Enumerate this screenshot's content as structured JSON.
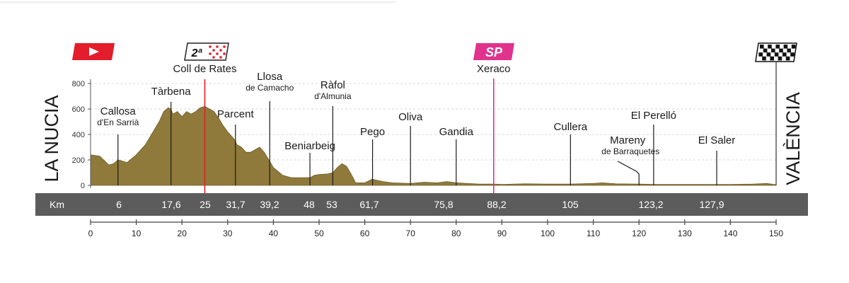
{
  "chart_data": {
    "type": "area",
    "title": "",
    "start": "LA NUCIA",
    "finish": "VALÈNCIA",
    "km_label": "Km",
    "xlim": [
      0,
      150
    ],
    "ylim": [
      0,
      800
    ],
    "x_ticks": [
      0,
      10,
      20,
      30,
      40,
      50,
      60,
      70,
      80,
      90,
      100,
      110,
      120,
      130,
      140,
      150
    ],
    "y_ticks": [
      0,
      200,
      400,
      600,
      800
    ],
    "colors": {
      "fill": "#8f7a3b",
      "climb": "#e31d2b",
      "sprint": "#e0338d",
      "band": "#5c5c5c"
    },
    "badges": [
      {
        "kind": "start",
        "icon": "play-icon",
        "km": 0
      },
      {
        "kind": "climb",
        "label": "2ª",
        "km": 25
      },
      {
        "kind": "sprint",
        "label": "SP",
        "km": 88.2
      },
      {
        "kind": "finish",
        "icon": "checkered-flag-icon",
        "km": 150
      }
    ],
    "profile": [
      [
        0,
        240
      ],
      [
        2,
        230
      ],
      [
        4,
        160
      ],
      [
        5,
        170
      ],
      [
        6,
        200
      ],
      [
        7,
        190
      ],
      [
        8,
        180
      ],
      [
        10,
        240
      ],
      [
        12,
        320
      ],
      [
        14,
        440
      ],
      [
        15,
        500
      ],
      [
        16,
        580
      ],
      [
        17,
        610
      ],
      [
        17.6,
        600
      ],
      [
        18,
        560
      ],
      [
        19,
        580
      ],
      [
        20,
        540
      ],
      [
        21,
        580
      ],
      [
        22,
        560
      ],
      [
        23,
        580
      ],
      [
        24,
        610
      ],
      [
        25,
        620
      ],
      [
        26,
        600
      ],
      [
        27,
        580
      ],
      [
        28,
        530
      ],
      [
        29,
        470
      ],
      [
        30,
        420
      ],
      [
        31,
        380
      ],
      [
        31.7,
        350
      ],
      [
        32,
        320
      ],
      [
        33,
        300
      ],
      [
        34,
        260
      ],
      [
        35,
        260
      ],
      [
        36,
        280
      ],
      [
        37,
        300
      ],
      [
        38,
        260
      ],
      [
        39,
        200
      ],
      [
        39.2,
        190
      ],
      [
        40,
        140
      ],
      [
        41,
        110
      ],
      [
        42,
        80
      ],
      [
        44,
        60
      ],
      [
        46,
        60
      ],
      [
        48,
        60
      ],
      [
        49,
        80
      ],
      [
        50,
        85
      ],
      [
        52,
        90
      ],
      [
        53,
        100
      ],
      [
        54,
        140
      ],
      [
        55,
        170
      ],
      [
        56,
        150
      ],
      [
        57,
        90
      ],
      [
        58,
        20
      ],
      [
        60,
        20
      ],
      [
        61.7,
        50
      ],
      [
        62,
        45
      ],
      [
        64,
        30
      ],
      [
        66,
        20
      ],
      [
        70,
        15
      ],
      [
        73,
        25
      ],
      [
        75.8,
        20
      ],
      [
        78,
        30
      ],
      [
        80,
        20
      ],
      [
        85,
        10
      ],
      [
        88.2,
        10
      ],
      [
        90,
        8
      ],
      [
        95,
        12
      ],
      [
        100,
        10
      ],
      [
        105,
        10
      ],
      [
        110,
        15
      ],
      [
        112,
        20
      ],
      [
        115,
        12
      ],
      [
        120,
        10
      ],
      [
        123.2,
        8
      ],
      [
        127.9,
        8
      ],
      [
        135,
        8
      ],
      [
        140,
        8
      ],
      [
        145,
        10
      ],
      [
        148,
        15
      ],
      [
        150,
        5
      ]
    ],
    "places": [
      {
        "name": "Callosa",
        "sub": "d'En Sarrià",
        "km": 6
      },
      {
        "name": "Tàrbena",
        "sub": "",
        "km": 17.6
      },
      {
        "name": "Coll de Rates",
        "sub": "",
        "km": 25
      },
      {
        "name": "Parcent",
        "sub": "",
        "km": 31.7
      },
      {
        "name": "Llosa",
        "sub": "de Camacho",
        "km": 39.2
      },
      {
        "name": "Beniarbeig",
        "sub": "",
        "km": 48
      },
      {
        "name": "Ràfol",
        "sub": "d'Almunia",
        "km": 53
      },
      {
        "name": "Pego",
        "sub": "",
        "km": 61.7
      },
      {
        "name": "Oliva",
        "sub": "",
        "km": 70
      },
      {
        "name": "Gandia",
        "sub": "",
        "km": 80
      },
      {
        "name": "Xeraco",
        "sub": "",
        "km": 88.2
      },
      {
        "name": "Cullera",
        "sub": "",
        "km": 105
      },
      {
        "name": "Mareny",
        "sub": "de Barraquetes",
        "km": 120
      },
      {
        "name": "El Perelló",
        "sub": "",
        "km": 123.2
      },
      {
        "name": "El Saler",
        "sub": "",
        "km": 137
      }
    ],
    "km_marks": [
      "6",
      "17,6",
      "25",
      "31,7",
      "39,2",
      "48",
      "53",
      "61,7",
      "75,8",
      "88,2",
      "105",
      "123,2",
      "127,9"
    ]
  }
}
